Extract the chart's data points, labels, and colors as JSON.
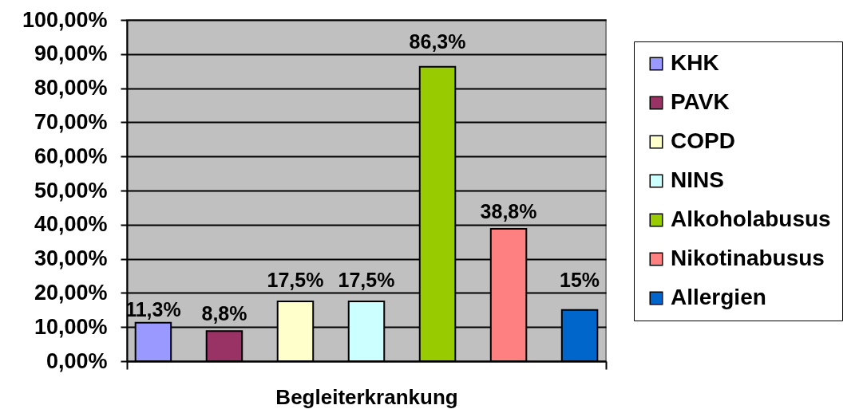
{
  "chart_data": {
    "type": "bar",
    "xlabel": "Begleiterkrankung",
    "categories": [
      null
    ],
    "series": [
      {
        "name": "KHK",
        "color": "#9999ff",
        "values": [
          11.3
        ],
        "value_labels": [
          "11,3%"
        ]
      },
      {
        "name": "PAVK",
        "color": "#993366",
        "values": [
          8.8
        ],
        "value_labels": [
          "8,8%"
        ]
      },
      {
        "name": "COPD",
        "color": "#ffffcc",
        "values": [
          17.5
        ],
        "value_labels": [
          "17,5%"
        ]
      },
      {
        "name": "NINS",
        "color": "#ccffff",
        "values": [
          17.5
        ],
        "value_labels": [
          "17,5%"
        ]
      },
      {
        "name": "Alkoholabusus",
        "color": "#99cc00",
        "values": [
          86.3
        ],
        "value_labels": [
          "86,3%"
        ]
      },
      {
        "name": "Nikotinabusus",
        "color": "#ff8080",
        "values": [
          38.8
        ],
        "value_labels": [
          "38,8%"
        ]
      },
      {
        "name": "Allergien",
        "color": "#0066cc",
        "values": [
          15
        ],
        "value_labels": [
          "15%"
        ]
      }
    ],
    "ylim": [
      0,
      100
    ],
    "yticks": [
      {
        "value": 0,
        "label": "0,00%"
      },
      {
        "value": 10,
        "label": "10,00%"
      },
      {
        "value": 20,
        "label": "20,00%"
      },
      {
        "value": 30,
        "label": "30,00%"
      },
      {
        "value": 40,
        "label": "40,00%"
      },
      {
        "value": 50,
        "label": "50,00%"
      },
      {
        "value": 60,
        "label": "60,00%"
      },
      {
        "value": 70,
        "label": "70,00%"
      },
      {
        "value": 80,
        "label": "80,00%"
      },
      {
        "value": 90,
        "label": "90,00%"
      },
      {
        "value": 100,
        "label": "100,00%"
      }
    ],
    "grid": "y",
    "legend": "right"
  }
}
